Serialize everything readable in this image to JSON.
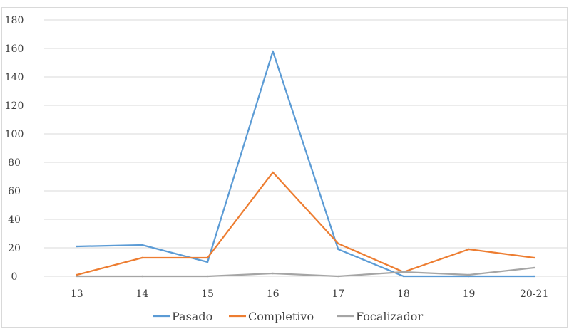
{
  "chart_data": {
    "type": "line",
    "categories": [
      "13",
      "14",
      "15",
      "16",
      "17",
      "18",
      "19",
      "20-21"
    ],
    "series": [
      {
        "name": "Pasado",
        "color": "#5b9bd5",
        "values": [
          21,
          22,
          10,
          158,
          19,
          0,
          0,
          0
        ]
      },
      {
        "name": "Completivo",
        "color": "#ed7d31",
        "values": [
          1,
          13,
          13,
          73,
          23,
          3,
          19,
          13
        ]
      },
      {
        "name": "Focalizador",
        "color": "#a5a5a5",
        "values": [
          0,
          0,
          0,
          2,
          0,
          3,
          1,
          6
        ]
      }
    ],
    "ylim": [
      0,
      180
    ],
    "yticks": [
      0,
      20,
      40,
      60,
      80,
      100,
      120,
      140,
      160,
      180
    ],
    "grid": true,
    "legend_position": "bottom"
  }
}
